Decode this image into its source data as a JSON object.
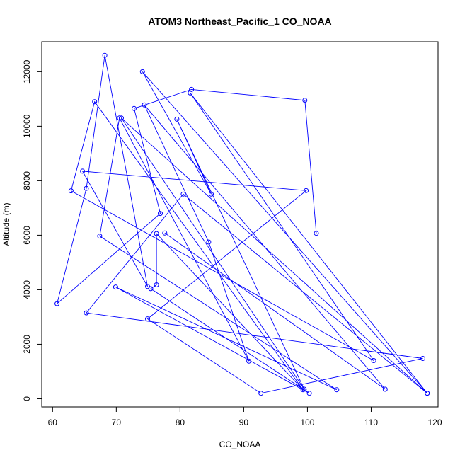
{
  "chart_data": {
    "type": "line",
    "title": "ATOM3 Northeast_Pacific_1 CO_NOAA",
    "xlabel": "CO_NOAA",
    "ylabel": "Altitude (m)",
    "xlim": [
      58.3,
      120.5
    ],
    "ylim": [
      -300,
      13100
    ],
    "x_ticks": [
      60,
      70,
      80,
      90,
      100,
      110,
      120
    ],
    "y_ticks": [
      0,
      2000,
      4000,
      6000,
      8000,
      10000,
      12000
    ],
    "grid": false,
    "legend": "none",
    "colors": {
      "series": "#0000ff",
      "axis": "#000000",
      "background": "#ffffff"
    },
    "series": [
      {
        "marker": "open-circle",
        "x": [
          101.4,
          99.6,
          81.8,
          72.8,
          76.9,
          60.7,
          65.3,
          68.2,
          74.9,
          64.7,
          99.8,
          74.9,
          92.7,
          118.1,
          65.3,
          80.5,
          118.8,
          70.8,
          99.5,
          79.5,
          84.9,
          74.1,
          118.8,
          81.6,
          110.4,
          62.9,
          66.6,
          99.3,
          76.3,
          76.3,
          75.4,
          100.3,
          69.9,
          104.6,
          67.4,
          70.5,
          90.8,
          84.5,
          74.4,
          112.2,
          77.6
        ],
        "y": [
          6070,
          10950,
          11350,
          10650,
          6800,
          3490,
          7720,
          12600,
          4120,
          8350,
          7640,
          2930,
          200,
          1480,
          3150,
          7510,
          200,
          10300,
          350,
          10260,
          7510,
          12000,
          200,
          11220,
          1400,
          7630,
          10900,
          330,
          6060,
          4180,
          4040,
          200,
          4100,
          330,
          5970,
          10300,
          1380,
          5750,
          10780,
          350,
          6080
        ]
      }
    ]
  }
}
